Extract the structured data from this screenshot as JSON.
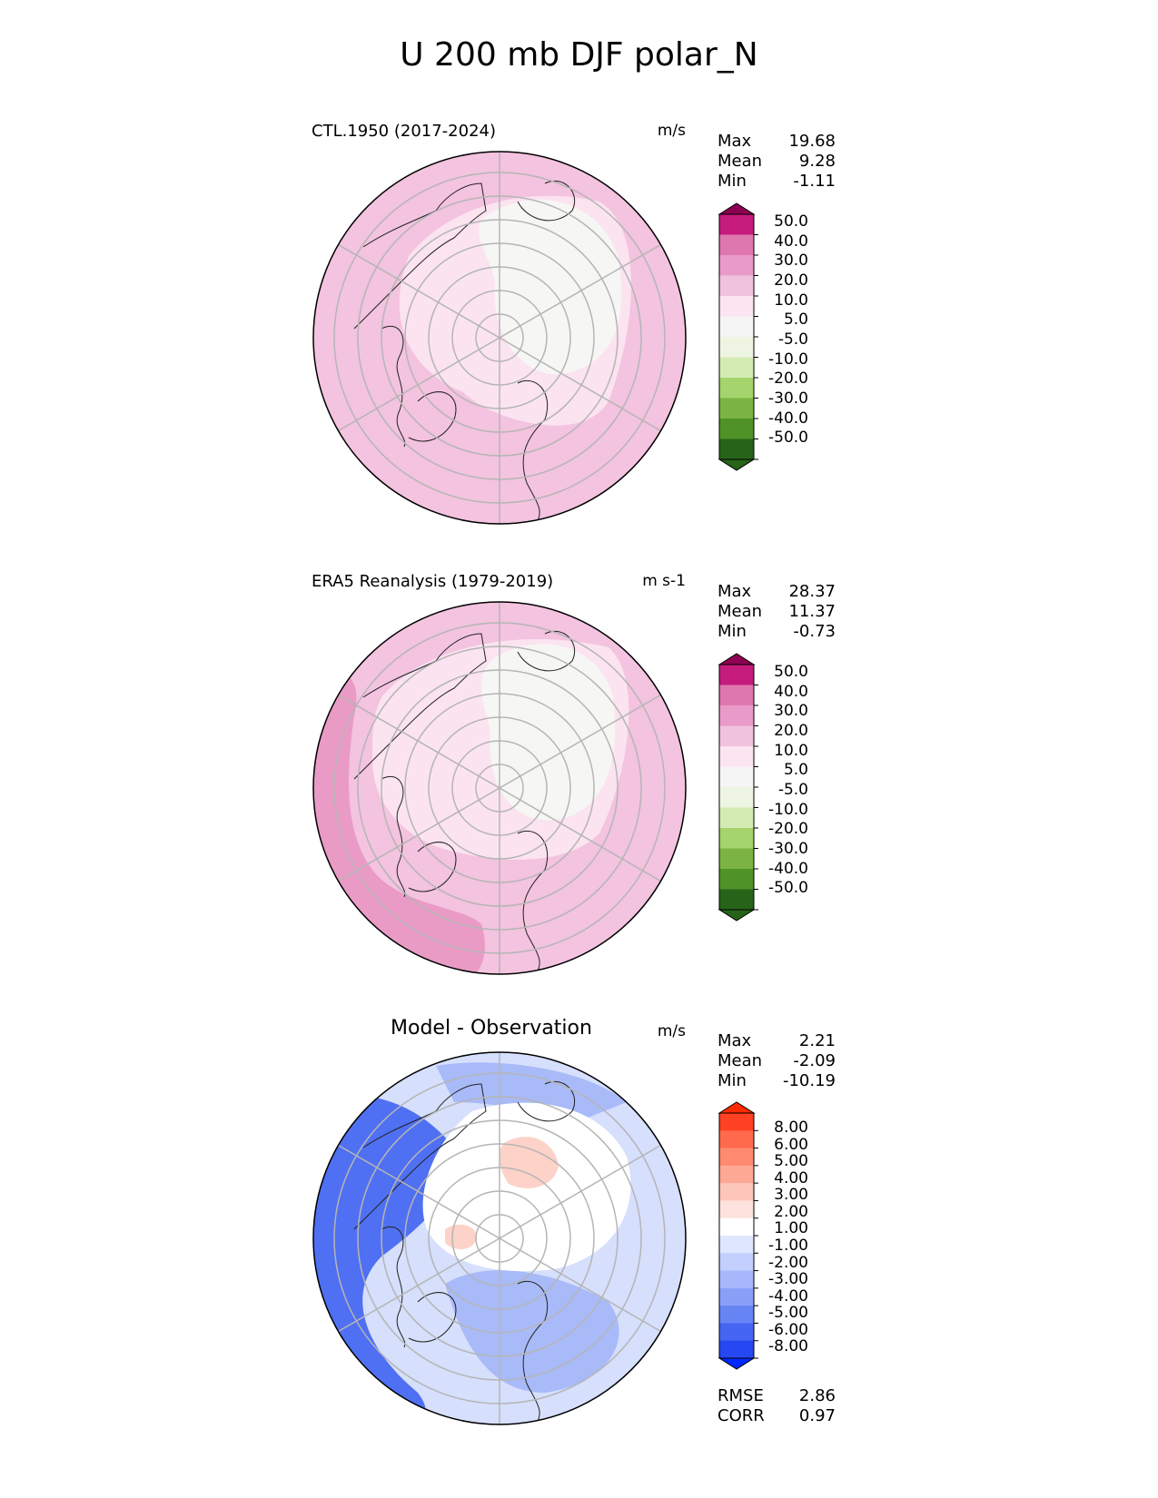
{
  "title": "U 200 mb DJF polar_N",
  "panels": [
    {
      "title": "CTL.1950 (2017-2024)",
      "units": "m/s",
      "stats": [
        {
          "label": "Max",
          "value": "19.68"
        },
        {
          "label": "Mean",
          "value": "9.28"
        },
        {
          "label": "Min",
          "value": "-1.11"
        }
      ]
    },
    {
      "title": "ERA5 Reanalysis (1979-2019)",
      "units": "m s-1",
      "stats": [
        {
          "label": "Max",
          "value": "28.37"
        },
        {
          "label": "Mean",
          "value": "11.37"
        },
        {
          "label": "Min",
          "value": "-0.73"
        }
      ]
    },
    {
      "title": "Model - Observation",
      "units": "m/s",
      "stats": [
        {
          "label": "Max",
          "value": "2.21"
        },
        {
          "label": "Mean",
          "value": "-2.09"
        },
        {
          "label": "Min",
          "value": "-10.19"
        }
      ],
      "extra_stats": [
        {
          "label": "RMSE",
          "value": "2.86"
        },
        {
          "label": "CORR",
          "value": "0.97"
        }
      ]
    }
  ],
  "colorbar_main": {
    "tick_labels": [
      "50.0",
      "40.0",
      "30.0",
      "20.0",
      "10.0",
      "5.0",
      "-5.0",
      "-10.0",
      "-20.0",
      "-30.0",
      "-40.0",
      "-50.0"
    ],
    "colors": [
      "#8e0152",
      "#c51b7d",
      "#de77ae",
      "#f1b6da",
      "#fde0ef",
      "#f7f7f7",
      "#f7f7f7",
      "#e6f5d0",
      "#b8e186",
      "#7fbc41",
      "#4d9221",
      "#276419"
    ],
    "bin_colors": [
      "#c51b7d",
      "#de77ae",
      "#ea9ac8",
      "#f1c2de",
      "#fbe5f0",
      "#f5f5f5",
      "#eef5e3",
      "#d4ecb3",
      "#a5d36c",
      "#7bb443",
      "#4f9328",
      "#276419"
    ],
    "over_color": "#8e0152",
    "under_color": "#276419"
  },
  "colorbar_diff": {
    "tick_labels": [
      "8.00",
      "6.00",
      "5.00",
      "4.00",
      "3.00",
      "2.00",
      "1.00",
      "-1.00",
      "-2.00",
      "-3.00",
      "-4.00",
      "-5.00",
      "-6.00",
      "-8.00"
    ],
    "bin_colors": [
      "#ff4124",
      "#ff6a4c",
      "#ff8a6f",
      "#fda895",
      "#fdc6ba",
      "#fde2dd",
      "#ffffff",
      "#dfe6ff",
      "#c3cffd",
      "#a7b7fb",
      "#8a9ff8",
      "#6784f5",
      "#4566f3",
      "#2548f2"
    ],
    "over_color": "#ff2a00",
    "under_color": "#0027ff"
  },
  "map_colors": {
    "ctl": {
      "outer": "#f3c3df",
      "mid": "#fbe3f0",
      "inner": "#f6f6f4"
    },
    "era5": {
      "outer": "#f3c3df",
      "mid": "#fbe3f0",
      "inner": "#f6f6f4",
      "strong": "#e99bc6"
    },
    "diff": {
      "outer": "#4f70f2",
      "mid": "#a8baf8",
      "light": "#d6dffc",
      "inner": "#ffffff",
      "pos": "#fdd2c8"
    }
  }
}
